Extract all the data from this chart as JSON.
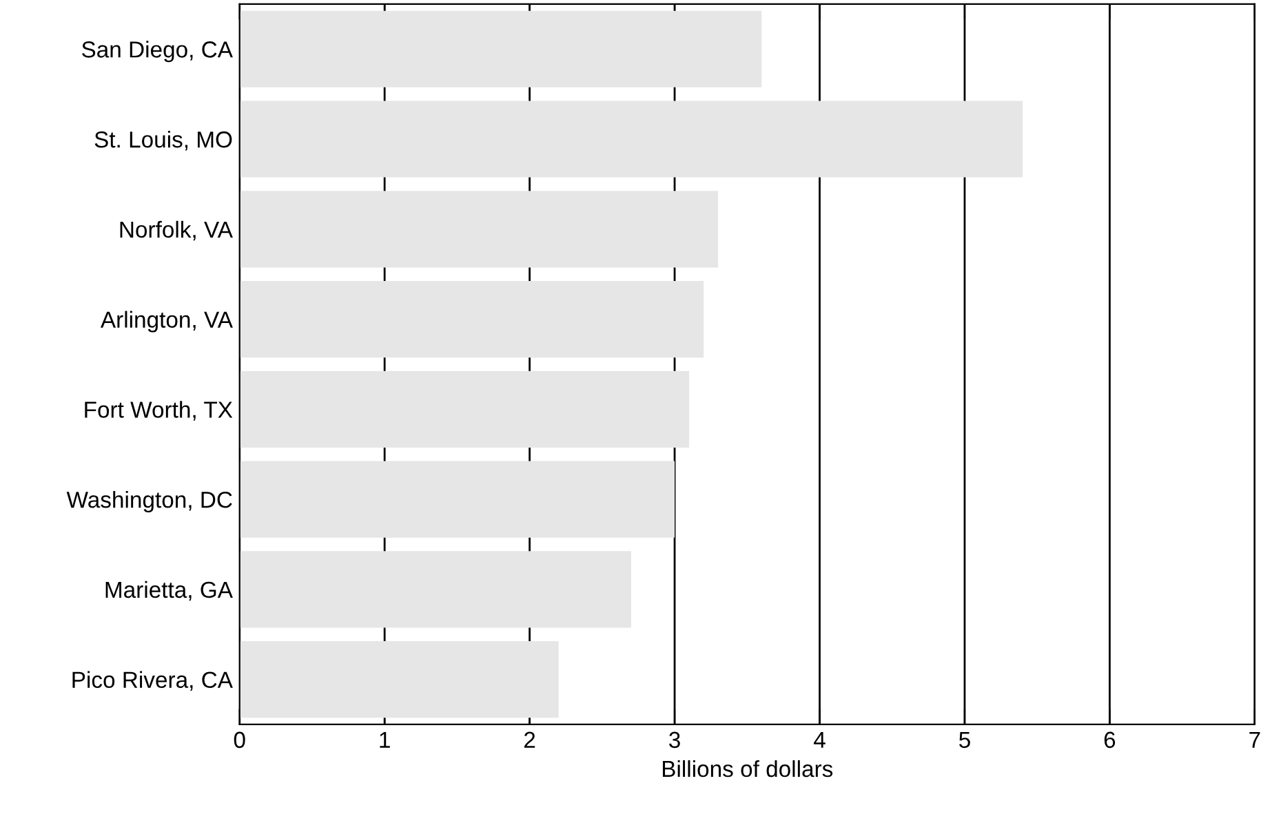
{
  "chart_data": {
    "type": "bar",
    "orientation": "horizontal",
    "xlabel": "Billions of dollars",
    "categories": [
      "San Diego, CA",
      "St. Louis, MO",
      "Norfolk, VA",
      "Arlington, VA",
      "Fort Worth, TX",
      "Washington, DC",
      "Marietta, GA",
      "Pico Rivera, CA"
    ],
    "values": [
      3.6,
      5.4,
      3.3,
      3.2,
      3.1,
      3.0,
      2.7,
      2.2
    ],
    "color": "#e6e6e6",
    "xlim": [
      0,
      7
    ],
    "xticks": [
      0,
      1,
      2,
      3,
      4,
      5,
      6,
      7
    ],
    "grid": "x"
  }
}
